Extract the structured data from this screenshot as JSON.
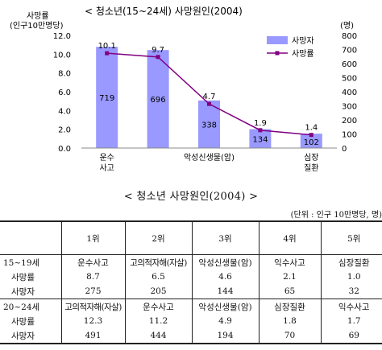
{
  "chart_data": {
    "type": "bar",
    "title": "< 청소년(15~24세) 사망원인(2004)",
    "y_left_label_line1": "사망률",
    "y_left_label_line2": "(인구10만명당)",
    "y_right_label": "(명)",
    "categories": [
      "운수\n사고",
      "고의적자해(자살)",
      "악성신생물(암)",
      "익수사고",
      "심장\n질환"
    ],
    "x_tick_labels": [
      "운수\n사고",
      "",
      "악성신생물(암)",
      "",
      "심장\n질환"
    ],
    "ylim_left": [
      0,
      12.0
    ],
    "yticks_left": [
      "0.0",
      "2.0",
      "4.0",
      "6.0",
      "8.0",
      "10.0",
      "12.0"
    ],
    "ylim_right": [
      0,
      800
    ],
    "yticks_right": [
      "0",
      "100",
      "200",
      "300",
      "400",
      "500",
      "600",
      "700",
      "800"
    ],
    "series": [
      {
        "name": "사망자",
        "type": "bar",
        "axis": "right",
        "color": "#9999ff",
        "values": [
          719,
          696,
          338,
          134,
          102
        ],
        "labels": [
          "719",
          "696",
          "338",
          "134",
          "102"
        ]
      },
      {
        "name": "사망률",
        "type": "line",
        "axis": "left",
        "color": "#800080",
        "values": [
          10.1,
          9.7,
          4.7,
          1.9,
          1.4
        ],
        "labels": [
          "10.1",
          "9.7",
          "4.7",
          "1.9",
          "1.4"
        ]
      }
    ],
    "legend_position": "top-right",
    "grid": false
  },
  "table": {
    "title": "< 청소년  사망원인(2004) >",
    "unit": "(단위 : 인구 10만명당, 명)",
    "ranks": [
      "1위",
      "2위",
      "3위",
      "4위",
      "5위"
    ],
    "groups": [
      {
        "age": "15~19세",
        "causes": [
          "운수사고",
          "고의적자해(자살)",
          "악성신생물(암)",
          "익수사고",
          "심장질환"
        ],
        "rows": [
          {
            "label": "사망률",
            "values": [
              "8.7",
              "6.5",
              "4.6",
              "2.1",
              "1.0"
            ]
          },
          {
            "label": "사망자",
            "values": [
              "275",
              "205",
              "144",
              "65",
              "32"
            ]
          }
        ]
      },
      {
        "age": "20~24세",
        "causes": [
          "고의적자해(자살)",
          "운수사고",
          "악성신생물(암)",
          "심장질환",
          "익수사고"
        ],
        "rows": [
          {
            "label": "사망률",
            "values": [
              "12.3",
              "11.2",
              "4.9",
              "1.8",
              "1.7"
            ]
          },
          {
            "label": "사망자",
            "values": [
              "491",
              "444",
              "194",
              "70",
              "69"
            ]
          }
        ]
      }
    ]
  }
}
